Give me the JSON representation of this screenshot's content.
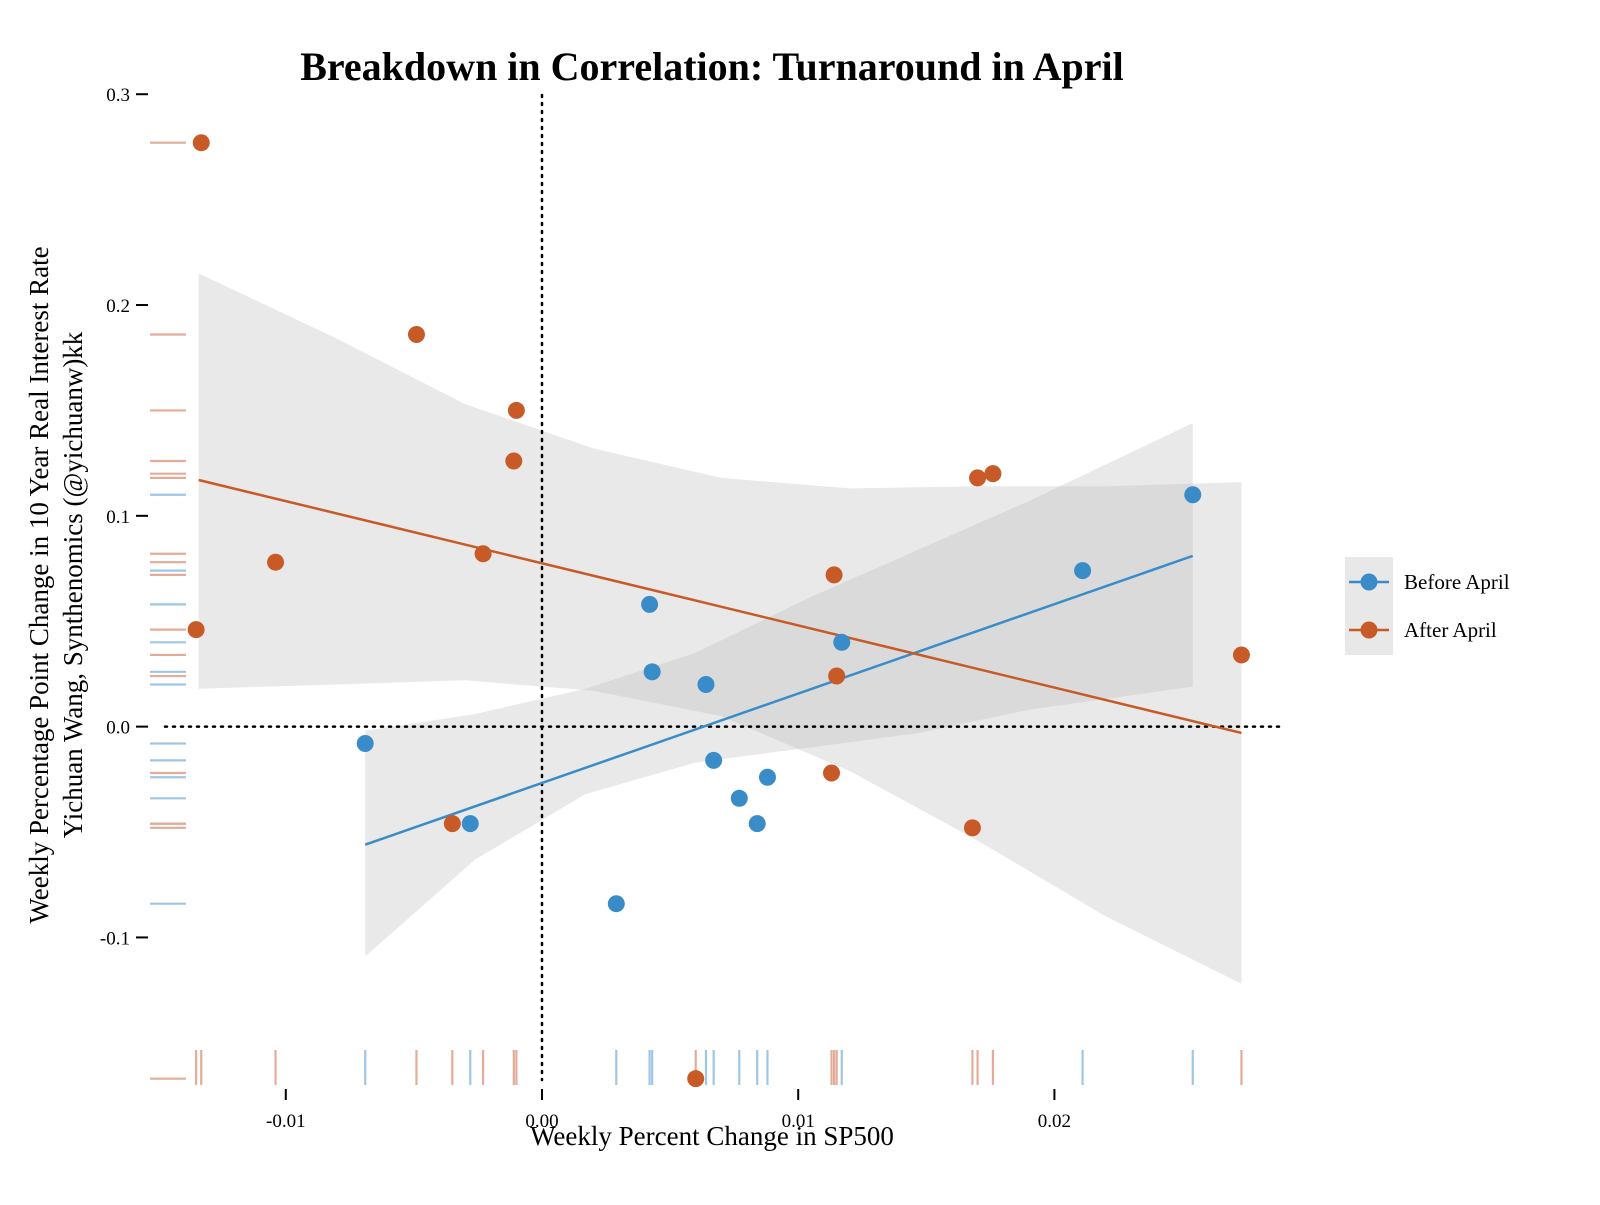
{
  "chart_data": {
    "type": "scatter",
    "title": "Breakdown in Correlation: Turnaround in April",
    "xlabel": "Weekly Percent Change in SP500",
    "ylabel_line1": "Weekly Percentage Point Change in 10 Year Real Interest Rate",
    "ylabel_line2": "Yichuan Wang, Synthenomics (@yichuanw)kk",
    "xlim": [
      -0.0153,
      0.029
    ],
    "ylim": [
      -0.17,
      0.302
    ],
    "xticks": [
      -0.01,
      0.0,
      0.01,
      0.02
    ],
    "xtick_labels": [
      "-0.01",
      "0.00",
      "0.01",
      "0.02"
    ],
    "yticks": [
      -0.1,
      0.0,
      0.1,
      0.2,
      0.3
    ],
    "ytick_labels": [
      "-0.1",
      "0.0",
      "0.1",
      "0.2",
      "0.3"
    ],
    "reference_lines": {
      "x": 0.0,
      "y": 0.0,
      "style": "dotted"
    },
    "legend_position": "right",
    "grid": false,
    "rug": true,
    "series": [
      {
        "name": "Before April",
        "color": "#3a8cc9",
        "rug_color": "#9fc6e4",
        "points": [
          [
            -0.0069,
            -0.008
          ],
          [
            -0.0028,
            -0.046
          ],
          [
            0.0029,
            -0.084
          ],
          [
            0.0042,
            0.058
          ],
          [
            0.0043,
            0.026
          ],
          [
            0.0064,
            0.02
          ],
          [
            0.0067,
            -0.016
          ],
          [
            0.0077,
            -0.034
          ],
          [
            0.0084,
            -0.046
          ],
          [
            0.0088,
            -0.024
          ],
          [
            0.0117,
            0.04
          ],
          [
            0.0211,
            0.074
          ],
          [
            0.0254,
            0.11
          ]
        ],
        "fit": {
          "x": [
            -0.0069,
            0.0254
          ],
          "y": [
            -0.056,
            0.081
          ]
        },
        "band": {
          "x": [
            -0.0069,
            -0.0026,
            0.0017,
            0.006,
            0.0104,
            0.0147,
            0.019,
            0.0254
          ],
          "lower": [
            -0.109,
            -0.063,
            -0.032,
            -0.017,
            -0.01,
            -0.003,
            0.008,
            0.019
          ],
          "upper": [
            -0.002,
            0.006,
            0.018,
            0.035,
            0.061,
            0.084,
            0.107,
            0.144
          ]
        }
      },
      {
        "name": "After April",
        "color": "#c85a27",
        "rug_color": "#e4ac97",
        "points": [
          [
            -0.0133,
            0.277
          ],
          [
            -0.0135,
            0.046
          ],
          [
            -0.0104,
            0.078
          ],
          [
            -0.0049,
            0.186
          ],
          [
            -0.0035,
            -0.046
          ],
          [
            -0.0023,
            0.082
          ],
          [
            -0.0011,
            0.126
          ],
          [
            -0.001,
            0.15
          ],
          [
            0.006,
            -0.167
          ],
          [
            0.0113,
            -0.022
          ],
          [
            0.0114,
            0.072
          ],
          [
            0.0115,
            0.024
          ],
          [
            0.0168,
            -0.048
          ],
          [
            0.017,
            0.118
          ],
          [
            0.0176,
            0.12
          ],
          [
            0.0273,
            0.034
          ]
        ],
        "fit": {
          "x": [
            -0.0134,
            0.0273
          ],
          "y": [
            0.117,
            -0.003
          ]
        },
        "band": {
          "x": [
            -0.0134,
            -0.008,
            -0.003,
            0.002,
            0.007,
            0.012,
            0.017,
            0.022,
            0.0273
          ],
          "lower": [
            0.018,
            0.02,
            0.022,
            0.017,
            0.005,
            -0.021,
            -0.054,
            -0.09,
            -0.122
          ],
          "upper": [
            0.215,
            0.184,
            0.153,
            0.132,
            0.118,
            0.113,
            0.114,
            0.114,
            0.116
          ]
        }
      }
    ]
  }
}
